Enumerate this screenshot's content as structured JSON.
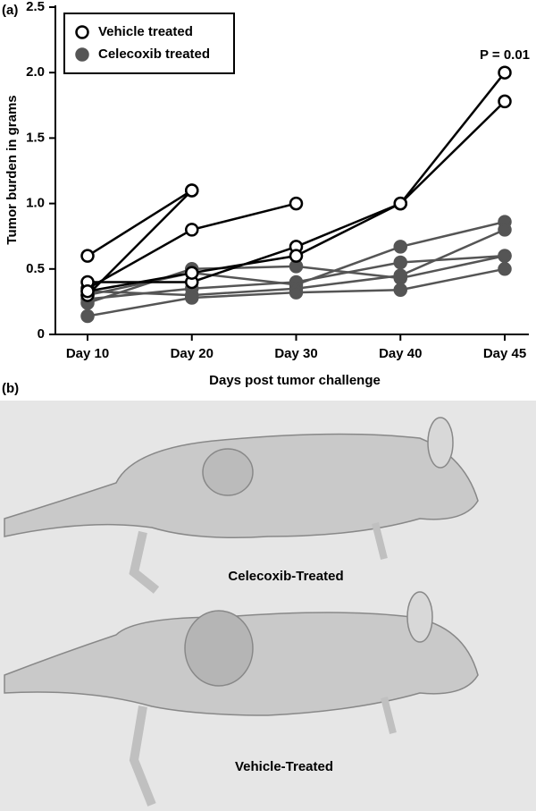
{
  "chart_data": {
    "type": "line",
    "panel_label": "(a)",
    "x_label": "Days post tumor challenge",
    "y_label": "Tumor burden in grams",
    "categories": [
      "Day 10",
      "Day 20",
      "Day 30",
      "Day 40",
      "Day 45"
    ],
    "ylim": [
      0,
      2.5
    ],
    "yticks": [
      0,
      0.5,
      {
        "value": 1,
        "label": "1.0"
      },
      1.5,
      {
        "value": 2,
        "label": "2.0"
      },
      2.5
    ],
    "annotation": "P = 0.01",
    "legend": "upper left",
    "series": [
      {
        "name": "Vehicle treated",
        "color": "#000000",
        "marker": "open",
        "lines": [
          [
            0.6,
            1.1,
            null,
            null,
            null
          ],
          [
            0.3,
            1.1,
            null,
            null,
            null
          ],
          [
            0.35,
            0.8,
            1.0,
            null,
            null
          ],
          [
            0.4,
            0.4,
            0.67,
            1.0,
            2.0
          ],
          [
            0.33,
            0.47,
            0.6,
            1.0,
            1.78
          ]
        ]
      },
      {
        "name": "Celecoxib treated",
        "color": "#555555",
        "marker": "filled",
        "lines": [
          [
            0.24,
            0.5,
            0.52,
            0.43,
            0.6
          ],
          [
            0.3,
            0.47,
            0.38,
            0.67,
            0.86
          ],
          [
            0.27,
            0.35,
            0.4,
            0.55,
            0.6
          ],
          [
            0.33,
            0.3,
            0.35,
            0.45,
            0.8
          ],
          [
            0.14,
            0.28,
            0.32,
            0.34,
            0.5
          ]
        ]
      }
    ]
  },
  "photo": {
    "panel_label": "(b)",
    "captions": [
      "Celecoxib-Treated",
      "Vehicle-Treated"
    ]
  }
}
